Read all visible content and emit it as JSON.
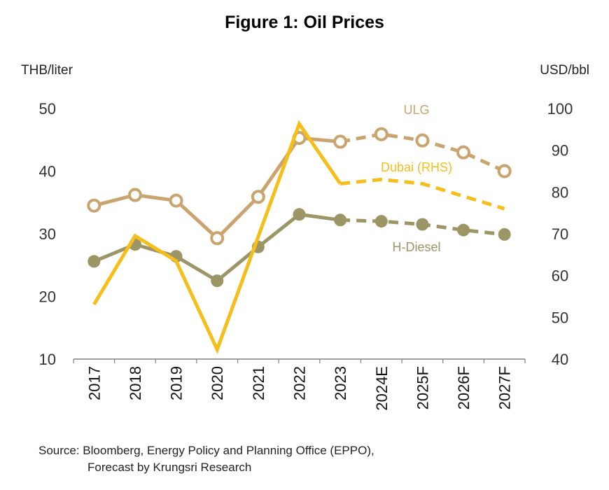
{
  "chart_data": {
    "type": "line",
    "title": "Figure 1: Oil Prices",
    "ylabel_left": "THB/liter",
    "ylabel_right": "USD/bbl",
    "ylim_left": [
      10,
      50
    ],
    "ylim_right": [
      40,
      100
    ],
    "yticks_left": [
      "10",
      "20",
      "30",
      "40",
      "50"
    ],
    "yticks_right": [
      "40",
      "50",
      "60",
      "70",
      "80",
      "90",
      "100"
    ],
    "categories": [
      "2017",
      "2018",
      "2019",
      "2020",
      "2021",
      "2022",
      "2023",
      "2024E",
      "2025F",
      "2026F",
      "2027F"
    ],
    "forecast_start_index": 6,
    "series": [
      {
        "name": "ULG",
        "axis": "left",
        "color": "#C9A46E",
        "marker": "open-circle",
        "values": [
          34.5,
          36.2,
          35.3,
          29.3,
          35.9,
          45.3,
          44.7,
          45.9,
          44.9,
          43.0,
          40.0
        ]
      },
      {
        "name": "H-Diesel",
        "axis": "left",
        "color": "#9C9566",
        "marker": "filled-circle",
        "values": [
          25.6,
          28.3,
          26.4,
          22.5,
          27.9,
          33.1,
          32.2,
          32.0,
          31.5,
          30.6,
          29.9
        ]
      },
      {
        "name": "Dubai (RHS)",
        "axis": "right",
        "color": "#F6BE1A",
        "marker": "none",
        "values": [
          53.1,
          69.5,
          63.5,
          42.3,
          69.3,
          96.3,
          82.0,
          83.0,
          82.0,
          79.0,
          76.0
        ]
      }
    ],
    "grid": false
  },
  "source": {
    "line1": "Source: Bloomberg, Energy Policy and Planning Office (EPPO),",
    "line2": "Forecast by Krungsri Research"
  }
}
